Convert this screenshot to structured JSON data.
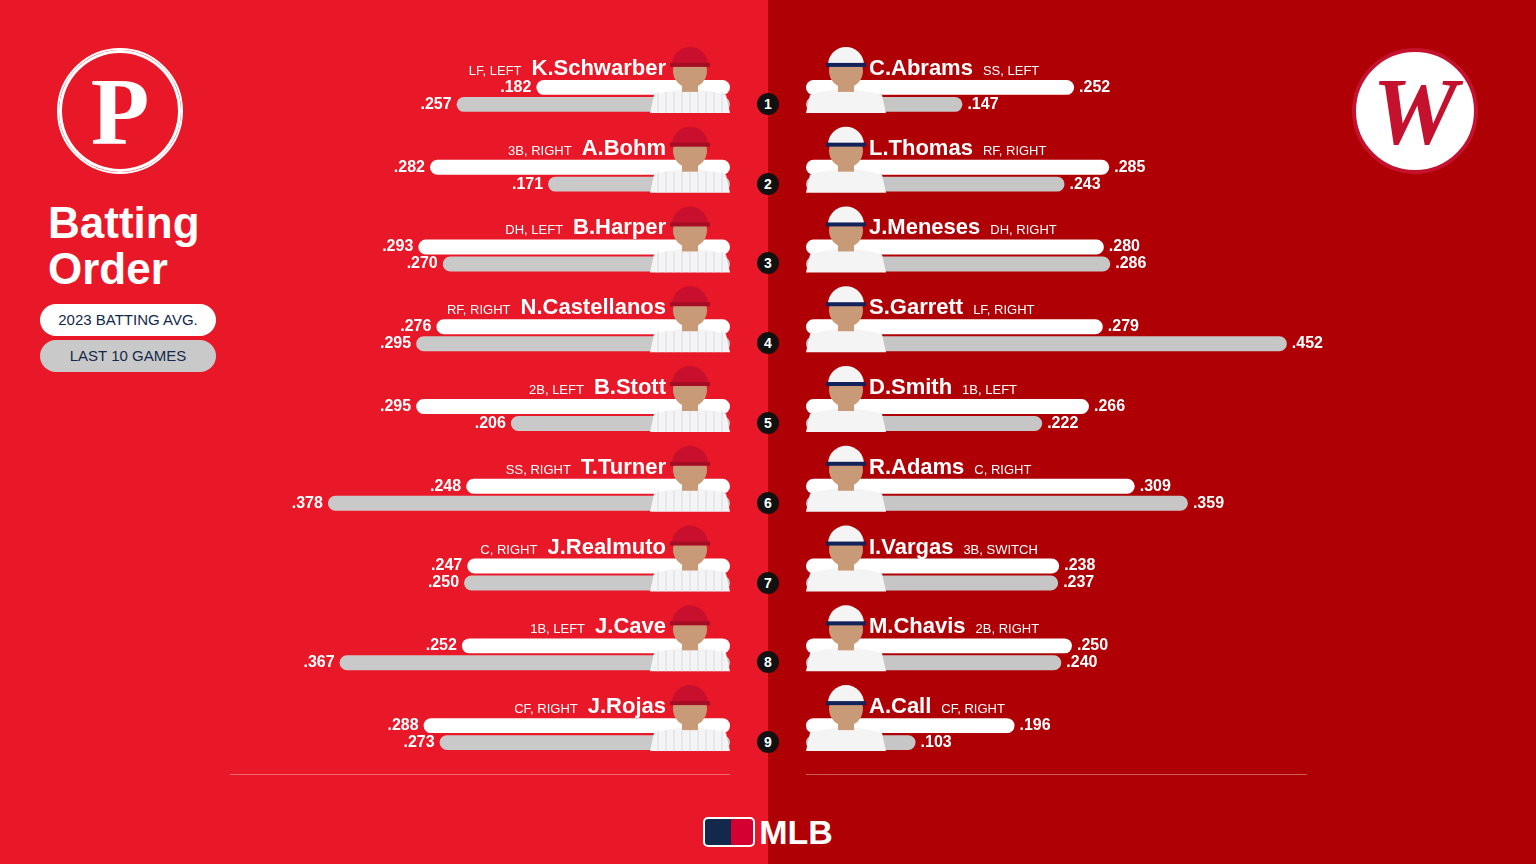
{
  "title": "Batting Order",
  "footer": "MLB",
  "batting_order": [
    1,
    2,
    3,
    4,
    5,
    6,
    7,
    8,
    9
  ],
  "chart_data": [
    {
      "type": "bar",
      "orientation": "horizontal",
      "logo": "P",
      "categories": [
        "K.Schwarber",
        "A.Bohm",
        "B.Harper",
        "N.Castellanos",
        "B.Stott",
        "T.Turner",
        "J.Realmuto",
        "J.Cave",
        "J.Rojas"
      ],
      "positions": [
        "LF, LEFT",
        "3B, RIGHT",
        "DH, LEFT",
        "RF, RIGHT",
        "2B, LEFT",
        "SS, RIGHT",
        "C, RIGHT",
        "1B, LEFT",
        "CF, RIGHT"
      ],
      "series": [
        {
          "name": "2023 BATTING AVG.",
          "color": "#ffffff",
          "values": [
            0.182,
            0.282,
            0.293,
            0.276,
            0.295,
            0.248,
            0.247,
            0.252,
            0.288
          ],
          "value_labels": [
            ".182",
            ".282",
            ".293",
            ".276",
            ".295",
            ".248",
            ".247",
            ".252",
            ".288"
          ]
        },
        {
          "name": "LAST 10 GAMES",
          "color": "#c9c9c9",
          "values": [
            0.257,
            0.171,
            0.27,
            0.295,
            0.206,
            0.378,
            0.25,
            0.367,
            0.273
          ],
          "value_labels": [
            ".257",
            ".171",
            ".270",
            ".295",
            ".206",
            ".378",
            ".250",
            ".367",
            ".273"
          ]
        }
      ],
      "xlim": [
        0,
        0.47
      ],
      "grid": false,
      "tick_labels": false,
      "data_labels": true,
      "legend": "left"
    },
    {
      "type": "bar",
      "orientation": "horizontal",
      "logo": "W",
      "categories": [
        "C.Abrams",
        "L.Thomas",
        "J.Meneses",
        "S.Garrett",
        "D.Smith",
        "R.Adams",
        "I.Vargas",
        "M.Chavis",
        "A.Call"
      ],
      "positions": [
        "SS, LEFT",
        "RF, RIGHT",
        "DH, RIGHT",
        "LF, RIGHT",
        "1B, LEFT",
        "C, RIGHT",
        "3B, SWITCH",
        "2B, RIGHT",
        "CF, RIGHT"
      ],
      "series": [
        {
          "name": "2023 BATTING AVG.",
          "color": "#ffffff",
          "values": [
            0.252,
            0.285,
            0.28,
            0.279,
            0.266,
            0.309,
            0.238,
            0.25,
            0.196
          ],
          "value_labels": [
            ".252",
            ".285",
            ".280",
            ".279",
            ".266",
            ".309",
            ".238",
            ".250",
            ".196"
          ]
        },
        {
          "name": "LAST 10 GAMES",
          "color": "#c6c6c6",
          "values": [
            0.147,
            0.243,
            0.286,
            0.452,
            0.222,
            0.359,
            0.237,
            0.24,
            0.103
          ],
          "value_labels": [
            ".147",
            ".243",
            ".286",
            ".452",
            ".222",
            ".359",
            ".237",
            ".240",
            ".103"
          ]
        }
      ],
      "xlim": [
        0,
        0.47
      ],
      "grid": false,
      "tick_labels": false,
      "data_labels": true
    }
  ]
}
